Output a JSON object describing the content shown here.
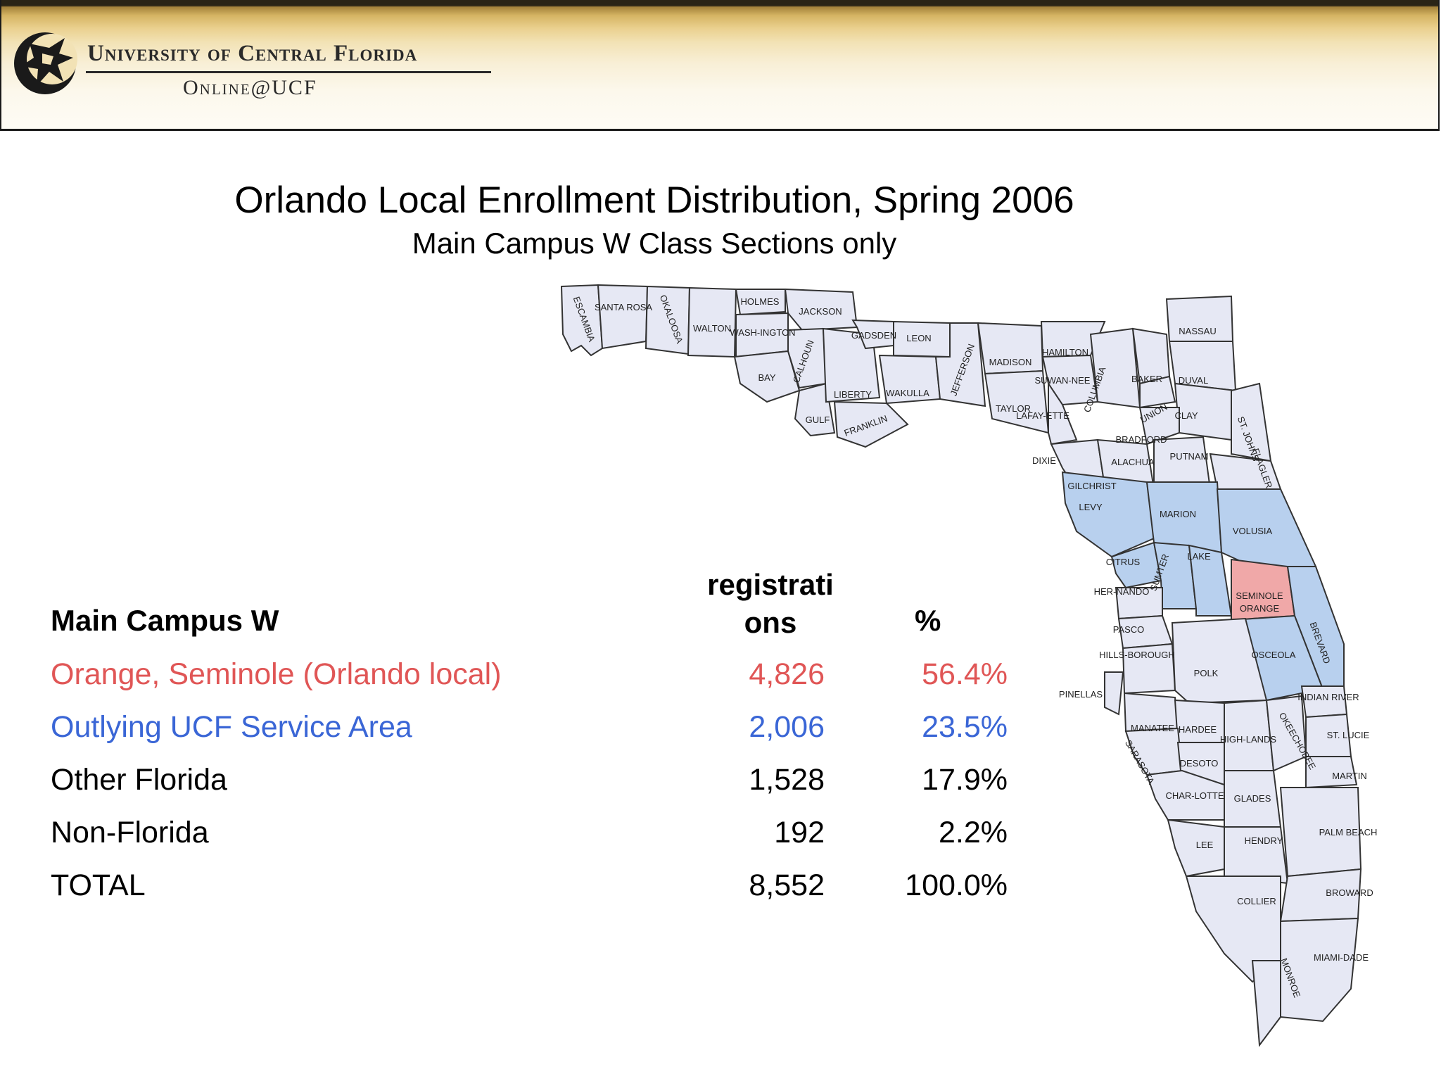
{
  "header": {
    "university_name": "University of Central Florida",
    "online_label": "Online@UCF"
  },
  "slide": {
    "title": "Orlando Local Enrollment Distribution, Spring 2006",
    "subtitle": "Main Campus W Class Sections only"
  },
  "table": {
    "columns": {
      "category": "Main Campus W",
      "registrations": "registrations",
      "percent": "%"
    },
    "rows": [
      {
        "label": "Orange, Seminole (Orlando local)",
        "registrations": "4,826",
        "percent": "56.4%",
        "color": "#e05656"
      },
      {
        "label": "Outlying UCF Service Area",
        "registrations": "2,006",
        "percent": "23.5%",
        "color": "#3a66d6"
      },
      {
        "label": "Other Florida",
        "registrations": "1,528",
        "percent": "17.9%",
        "color": "#000000"
      },
      {
        "label": "Non-Florida",
        "registrations": "192",
        "percent": "2.2%",
        "color": "#000000"
      },
      {
        "label": "TOTAL",
        "registrations": "8,552",
        "percent": "100.0%",
        "color": "#000000"
      }
    ]
  },
  "map": {
    "colors": {
      "orlando_local": "#f0a8a8",
      "service_area": "#b8d0ee",
      "other": "#e6e8f4",
      "border": "#333333"
    },
    "county_labels": {
      "escambia": "ESCAMBIA",
      "santa_rosa": "SANTA ROSA",
      "okaloosa": "OKALOOSA",
      "walton": "WALTON",
      "holmes": "HOLMES",
      "washington": "WASH-INGTON",
      "jackson": "JACKSON",
      "bay": "BAY",
      "calhoun": "CALHOUN",
      "gadsden": "GADSDEN",
      "leon": "LEON",
      "jefferson": "JEFFERSON",
      "madison": "MADISON",
      "hamilton": "HAMILTON",
      "nassau": "NASSAU",
      "liberty": "LIBERTY",
      "wakulla": "WAKULLA",
      "gulf": "GULF",
      "franklin": "FRANKLIN",
      "taylor": "TAYLOR",
      "suwannee": "SUWAN-NEE",
      "columbia": "COLUMBIA",
      "baker": "BAKER",
      "duval": "DUVAL",
      "union": "UNION",
      "clay": "CLAY",
      "lafayette": "LAFAY-ETTE",
      "bradford": "BRADFORD",
      "st_johns": "ST. JOHNS",
      "dixie": "DIXIE",
      "alachua": "ALACHUA",
      "putnam": "PUTNAM",
      "flagler": "FLAGLER",
      "gilchrist": "GILCHRIST",
      "levy": "LEVY",
      "marion": "MARION",
      "volusia": "VOLUSIA",
      "citrus": "CITRUS",
      "sumter": "SUMTER",
      "lake": "LAKE",
      "seminole": "SEMINOLE",
      "orange": "ORANGE",
      "hernando": "HER-NANDO",
      "brevard": "BREVARD",
      "pasco": "PASCO",
      "osceola": "OSCEOLA",
      "hillsborough": "HILLS-BOROUGH",
      "polk": "POLK",
      "pinellas": "PINELLAS",
      "indian_river": "INDIAN RIVER",
      "manatee": "MANATEE",
      "hardee": "HARDEE",
      "highlands": "HIGH-LANDS",
      "okeechobee": "OKEECHOBEE",
      "st_lucie": "ST. LUCIE",
      "sarasota": "SARASOTA",
      "desoto": "DESOTO",
      "martin": "MARTIN",
      "charlotte": "CHAR-LOTTE",
      "glades": "GLADES",
      "lee": "LEE",
      "hendry": "HENDRY",
      "palm_beach": "PALM BEACH",
      "broward": "BROWARD",
      "collier": "COLLIER",
      "monroe": "MONROE",
      "miami_dade": "MIAMI-DADE"
    }
  }
}
